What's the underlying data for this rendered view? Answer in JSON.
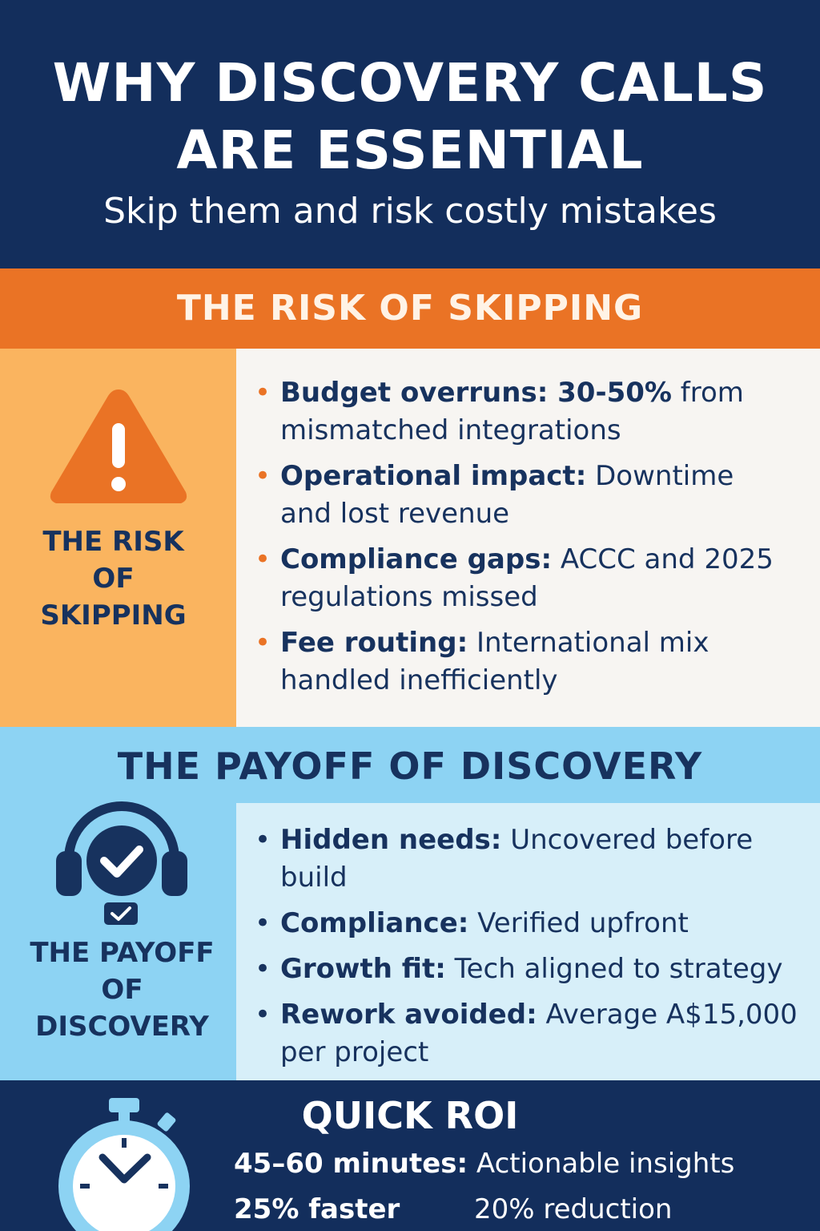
{
  "header": {
    "title_line1": "WHY DISCOVERY CALLS",
    "title_line2": "ARE ESSENTIAL",
    "subtitle": "Skip them and risk costly mistakes"
  },
  "risk": {
    "banner": "THE RISK OF SKIPPING",
    "side_label_line1": "THE RISK",
    "side_label_line2": "OF",
    "side_label_line3": "SKIPPING",
    "icon": "warning-triangle-icon",
    "bullets": [
      {
        "bold": "Budget overruns: 30-50%",
        "rest_line1": " from",
        "line2": "mismatched integrations"
      },
      {
        "bold": "Operational impact:",
        "rest_line1": " Downtime",
        "line2": "and lost revenue"
      },
      {
        "bold": "Compliance gaps:",
        "rest_line1": " ACCC and 2025",
        "line2": "regulations missed"
      },
      {
        "bold": "Fee routing:",
        "rest_line1": " International mix",
        "line2": "handled inefficiently"
      }
    ]
  },
  "payoff": {
    "banner": "THE PAYOFF OF DISCOVERY",
    "side_label_line1": "THE PAYOFF",
    "side_label_line2": "OF",
    "side_label_line3": "DISCOVERY",
    "icon": "headset-check-icon",
    "bullets": [
      {
        "bold": "Hidden needs:",
        "rest_line1": " Uncovered before",
        "line2": "build"
      },
      {
        "bold": "Compliance:",
        "rest_line1": " Verified upfront",
        "line2": ""
      },
      {
        "bold": "Growth fit:",
        "rest_line1": " Tech aligned to strategy",
        "line2": ""
      },
      {
        "bold": "Rework avoided:",
        "rest_line1": " Average A$15,000",
        "line2": "per project"
      }
    ]
  },
  "roi": {
    "title": "QUICK ROI",
    "icon": "stopwatch-icon",
    "line1_bold": "45–60 minutes:",
    "line1_rest": " Actionable insights",
    "stat1": "25% faster",
    "stat2": "20% reduction"
  },
  "colors": {
    "navy": "#132e5c",
    "orange": "#ea7325",
    "light_orange": "#fab45f",
    "light_blue": "#8dd3f3",
    "pale_blue": "#d7eff9"
  }
}
